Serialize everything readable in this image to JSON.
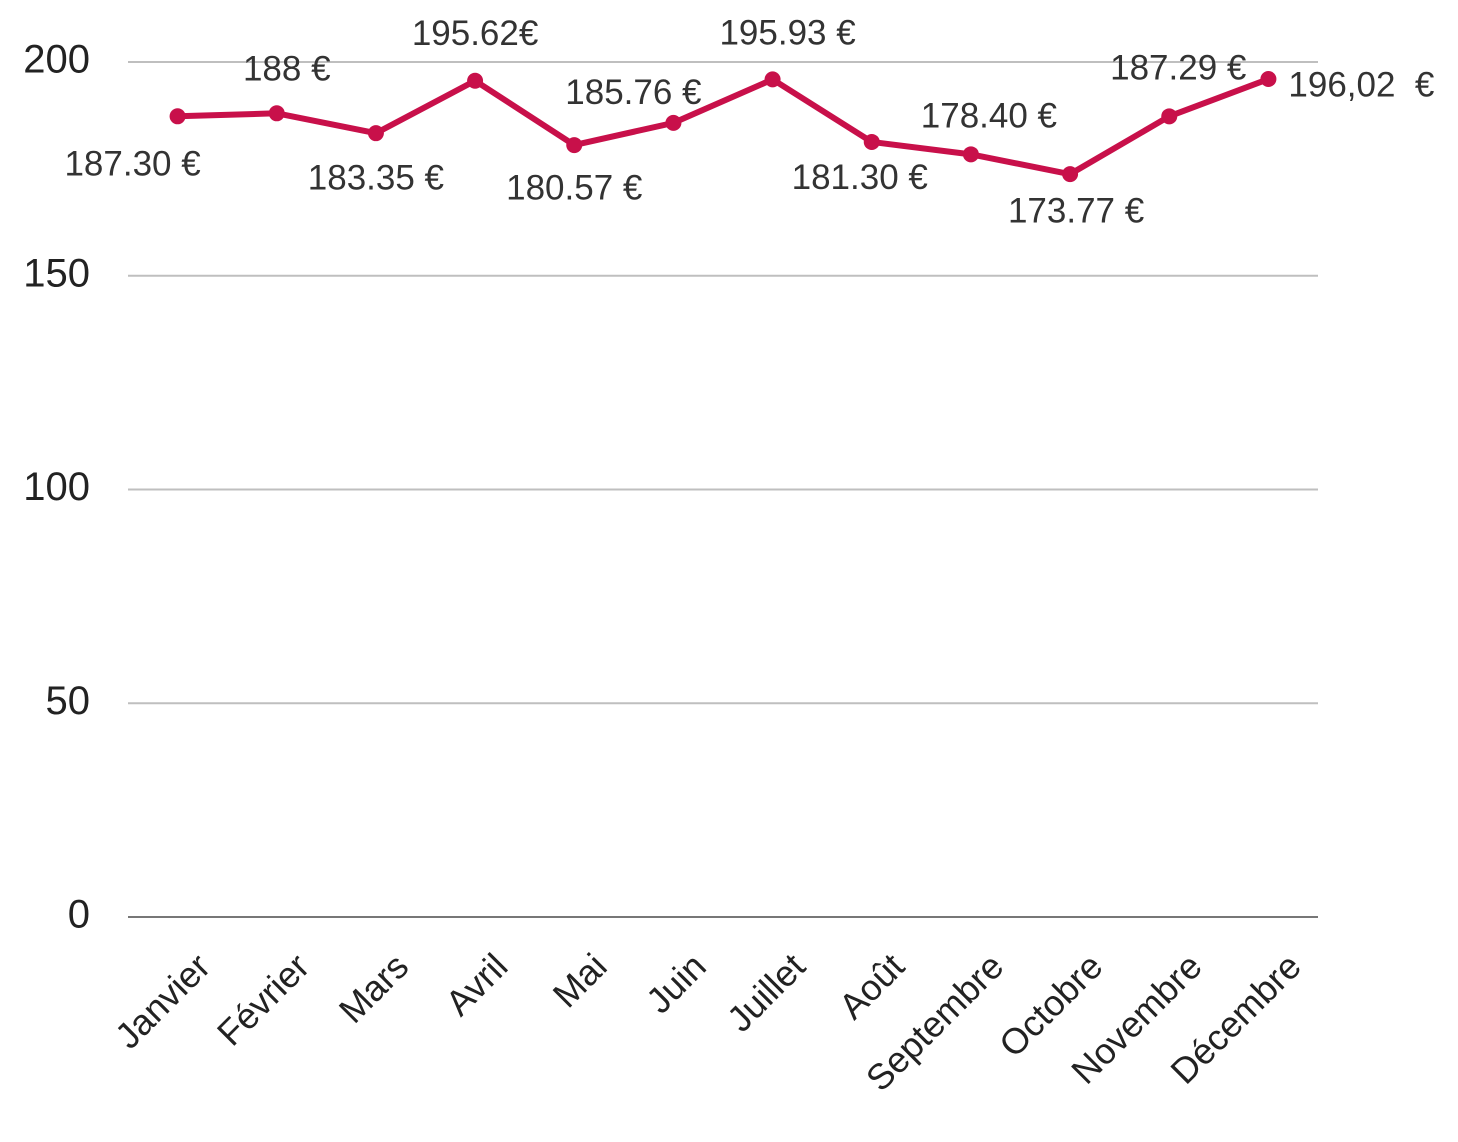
{
  "chart_data": {
    "type": "line",
    "categories": [
      "Janvier",
      "Février",
      "Mars",
      "Avril",
      "Mai",
      "Juin",
      "Juillet",
      "Août",
      "Septembre",
      "Octobre",
      "Novembre",
      "Décembre"
    ],
    "values": [
      187.3,
      188,
      183.35,
      195.62,
      180.57,
      185.76,
      195.93,
      181.3,
      178.4,
      173.77,
      187.29,
      196.02
    ],
    "value_labels": [
      "187.30 €",
      "188 €",
      "183.35 €",
      "195.62€",
      "180.57 €",
      "185.76 €",
      "195.93 €",
      "181.30 €",
      "178.40 €",
      "173.77 €",
      "187.29 €",
      "196,02  €"
    ],
    "color": "#c8104a",
    "ylim": [
      0,
      200
    ],
    "yticks": [
      0,
      50,
      100,
      150,
      200
    ],
    "grid": true
  }
}
